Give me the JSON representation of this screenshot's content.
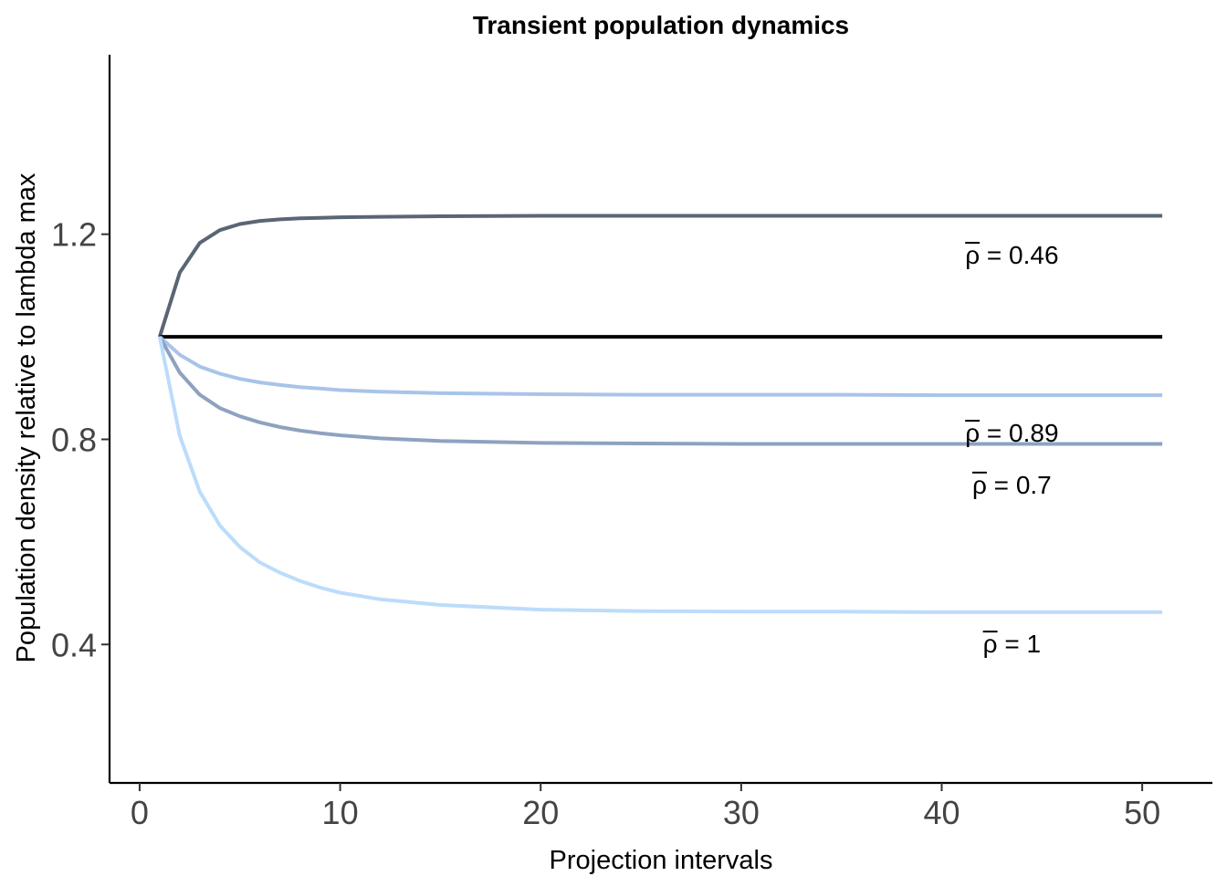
{
  "chart_data": {
    "type": "line",
    "title": "Transient population dynamics",
    "xlabel": "Projection intervals",
    "ylabel": "Population density relative to lambda max",
    "xlim": [
      -1.5,
      53.5
    ],
    "ylim": [
      0.13,
      1.55
    ],
    "xticks": [
      0,
      10,
      20,
      30,
      40,
      50
    ],
    "yticks": [
      0.4,
      0.8,
      1.2
    ],
    "grid": false,
    "legend": "none",
    "x": [
      1,
      2,
      3,
      4,
      5,
      6,
      7,
      8,
      9,
      10,
      12,
      15,
      20,
      25,
      30,
      35,
      40,
      45,
      51
    ],
    "series": [
      {
        "color": "#5a6575",
        "values": [
          1.0,
          1.125,
          1.183,
          1.208,
          1.22,
          1.226,
          1.229,
          1.231,
          1.232,
          1.233,
          1.234,
          1.235,
          1.236,
          1.236,
          1.236,
          1.236,
          1.236,
          1.236,
          1.236
        ]
      },
      {
        "color": "#000000",
        "values": [
          1.0,
          1.0,
          1.0,
          1.0,
          1.0,
          1.0,
          1.0,
          1.0,
          1.0,
          1.0,
          1.0,
          1.0,
          1.0,
          1.0,
          1.0,
          1.0,
          1.0,
          1.0,
          1.0
        ]
      },
      {
        "color": "#a8c4e8",
        "values": [
          1.0,
          0.965,
          0.942,
          0.928,
          0.918,
          0.911,
          0.906,
          0.902,
          0.899,
          0.896,
          0.893,
          0.89,
          0.888,
          0.887,
          0.887,
          0.887,
          0.886,
          0.886,
          0.886
        ]
      },
      {
        "color": "#8ea2c0",
        "values": [
          1.0,
          0.93,
          0.887,
          0.861,
          0.845,
          0.833,
          0.824,
          0.817,
          0.812,
          0.808,
          0.802,
          0.797,
          0.793,
          0.792,
          0.791,
          0.791,
          0.791,
          0.791,
          0.791
        ]
      },
      {
        "color": "#bcdcfb",
        "values": [
          1.0,
          0.807,
          0.698,
          0.632,
          0.59,
          0.56,
          0.54,
          0.524,
          0.511,
          0.501,
          0.488,
          0.477,
          0.468,
          0.465,
          0.464,
          0.464,
          0.463,
          0.463,
          0.463
        ]
      }
    ],
    "annotations": [
      {
        "symbol": "ρ",
        "text": " = 0.46",
        "x": 43.5,
        "y": 1.16
      },
      {
        "symbol": "ρ",
        "text": " = 0.89",
        "x": 43.5,
        "y": 0.813
      },
      {
        "symbol": "ρ",
        "text": " = 0.7",
        "x": 43.5,
        "y": 0.712
      },
      {
        "symbol": "ρ",
        "text": " = 1",
        "x": 43.5,
        "y": 0.402
      }
    ]
  }
}
